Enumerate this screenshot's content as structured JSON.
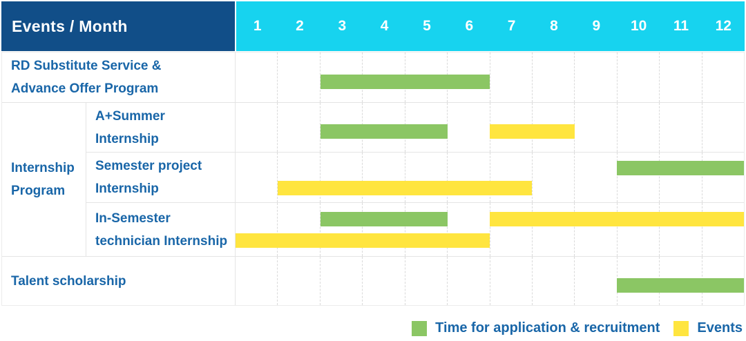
{
  "table": {
    "corner_title": "Events / Month"
  },
  "legend": {
    "application": {
      "label": "Time for application & recruitment"
    },
    "events": {
      "label": "Events"
    }
  },
  "colors": {
    "header_navy": "#114e88",
    "header_cyan": "#17d3ef",
    "application_green": "#8bc664",
    "event_yellow": "#ffe53f",
    "text_blue": "#1966a8",
    "grid_line": "#e4e4e4"
  },
  "chart_data": {
    "type": "gantt",
    "title": "Events / Month",
    "x_axis_unit": "month",
    "months": [
      "1",
      "2",
      "3",
      "4",
      "5",
      "6",
      "7",
      "8",
      "9",
      "10",
      "11",
      "12"
    ],
    "x_range": [
      1,
      12
    ],
    "grid": "dashed-vertical-month-lines",
    "legend_position": "bottom-right",
    "bar_kinds": {
      "application": "Time for application & recruitment",
      "event": "Events"
    },
    "groups": {
      "Internship Program": {
        "label_lines": [
          "Internship",
          "Program"
        ]
      }
    },
    "rows": [
      {
        "label": "RD Substitute Service & Advance Offer Program",
        "label_lines": [
          "RD Substitute Service &",
          "Advance Offer Program"
        ],
        "group": null,
        "bars": [
          {
            "kind": "application",
            "start_month": 3,
            "end_month": 6,
            "lane": "center"
          }
        ]
      },
      {
        "label": "A+Summer Internship",
        "label_lines": [
          "A+Summer",
          "Internship"
        ],
        "group": "Internship Program",
        "bars": [
          {
            "kind": "application",
            "start_month": 3,
            "end_month": 5,
            "lane": "center"
          },
          {
            "kind": "event",
            "start_month": 7,
            "end_month": 8,
            "lane": "center"
          }
        ]
      },
      {
        "label": "Semester project Internship",
        "label_lines": [
          "Semester project",
          "Internship"
        ],
        "group": "Internship Program",
        "bars": [
          {
            "kind": "application",
            "start_month": 10,
            "end_month": 12,
            "lane": "top"
          },
          {
            "kind": "event",
            "start_month": 2,
            "end_month": 7,
            "lane": "bottom"
          }
        ]
      },
      {
        "label": "In-Semester technician Internship",
        "label_lines": [
          "In-Semester",
          "technician Internship"
        ],
        "group": "Internship Program",
        "bars": [
          {
            "kind": "application",
            "start_month": 3,
            "end_month": 5,
            "lane": "top"
          },
          {
            "kind": "event",
            "start_month": 7,
            "end_month": 12,
            "lane": "top"
          },
          {
            "kind": "event",
            "start_month": 1,
            "end_month": 6,
            "lane": "bottom"
          }
        ]
      },
      {
        "label": "Talent scholarship",
        "label_lines": [
          "Talent scholarship"
        ],
        "group": null,
        "bars": [
          {
            "kind": "application",
            "start_month": 10,
            "end_month": 12,
            "lane": "center"
          }
        ]
      }
    ]
  }
}
